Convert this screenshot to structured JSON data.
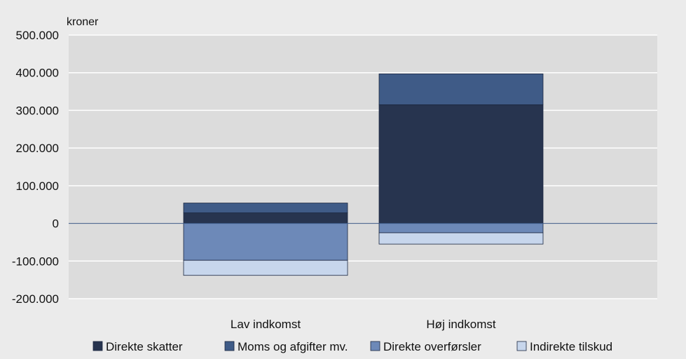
{
  "chart_data": {
    "type": "bar",
    "stacked": true,
    "unit_label": "kroner",
    "categories": [
      "Lav indkomst",
      "Høj indkomst"
    ],
    "series": [
      {
        "name": "Direkte skatter",
        "color": "#27344f",
        "values": [
          28000,
          315000
        ]
      },
      {
        "name": "Moms og afgifter mv.",
        "color": "#3f5b87",
        "values": [
          26000,
          82000
        ]
      },
      {
        "name": "Direkte overførsler",
        "color": "#6d89b8",
        "values": [
          -98000,
          -25000
        ]
      },
      {
        "name": "Indirekte tilskud",
        "color": "#c7d6ec",
        "values": [
          -40000,
          -30000
        ]
      }
    ],
    "ylim": [
      -200000,
      500000
    ],
    "yticks": [
      {
        "value": 500000,
        "label": "500.000"
      },
      {
        "value": 400000,
        "label": "400.000"
      },
      {
        "value": 300000,
        "label": "300.000"
      },
      {
        "value": 200000,
        "label": "200.000"
      },
      {
        "value": 100000,
        "label": "100.000"
      },
      {
        "value": 0,
        "label": "0"
      },
      {
        "value": -100000,
        "label": "-100.000"
      },
      {
        "value": -200000,
        "label": "-200.000"
      }
    ],
    "grid": true,
    "legend": "bottom"
  }
}
